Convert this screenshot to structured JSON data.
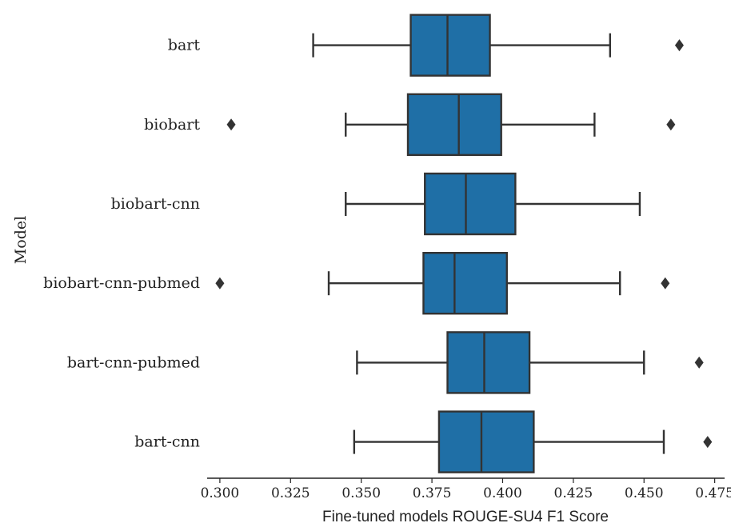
{
  "chart_data": {
    "type": "box",
    "orientation": "horizontal",
    "xlabel": "Fine-tuned models ROUGE-SU4 F1 Score",
    "ylabel": "Model",
    "xlim": [
      0.2955,
      0.4785
    ],
    "xticks": [
      0.3,
      0.325,
      0.35,
      0.375,
      0.4,
      0.425,
      0.45,
      0.475
    ],
    "xtick_labels": [
      "0.300",
      "0.325",
      "0.350",
      "0.375",
      "0.400",
      "0.425",
      "0.450",
      "0.475"
    ],
    "grid": false,
    "box_color": "#1f6fa6",
    "line_color": "#333333",
    "categories": [
      "bart",
      "biobart",
      "biobart-cnn",
      "biobart-cnn-pubmed",
      "bart-cnn-pubmed",
      "bart-cnn"
    ],
    "series": [
      {
        "category": "bart",
        "whisker_low": 0.333,
        "q1": 0.3675,
        "median": 0.3805,
        "q3": 0.3955,
        "whisker_high": 0.438,
        "outliers": [
          0.4625
        ]
      },
      {
        "category": "biobart",
        "whisker_low": 0.3445,
        "q1": 0.3665,
        "median": 0.3845,
        "q3": 0.3995,
        "whisker_high": 0.4325,
        "outliers": [
          0.304,
          0.4595
        ]
      },
      {
        "category": "biobart-cnn",
        "whisker_low": 0.3445,
        "q1": 0.3725,
        "median": 0.387,
        "q3": 0.4045,
        "whisker_high": 0.4485,
        "outliers": []
      },
      {
        "category": "biobart-cnn-pubmed",
        "whisker_low": 0.3385,
        "q1": 0.372,
        "median": 0.383,
        "q3": 0.4015,
        "whisker_high": 0.4415,
        "outliers": [
          0.3,
          0.4575
        ]
      },
      {
        "category": "bart-cnn-pubmed",
        "whisker_low": 0.3485,
        "q1": 0.3805,
        "median": 0.3935,
        "q3": 0.4095,
        "whisker_high": 0.45,
        "outliers": [
          0.4695
        ]
      },
      {
        "category": "bart-cnn",
        "whisker_low": 0.3475,
        "q1": 0.3775,
        "median": 0.3925,
        "q3": 0.411,
        "whisker_high": 0.457,
        "outliers": [
          0.4725
        ]
      }
    ]
  }
}
